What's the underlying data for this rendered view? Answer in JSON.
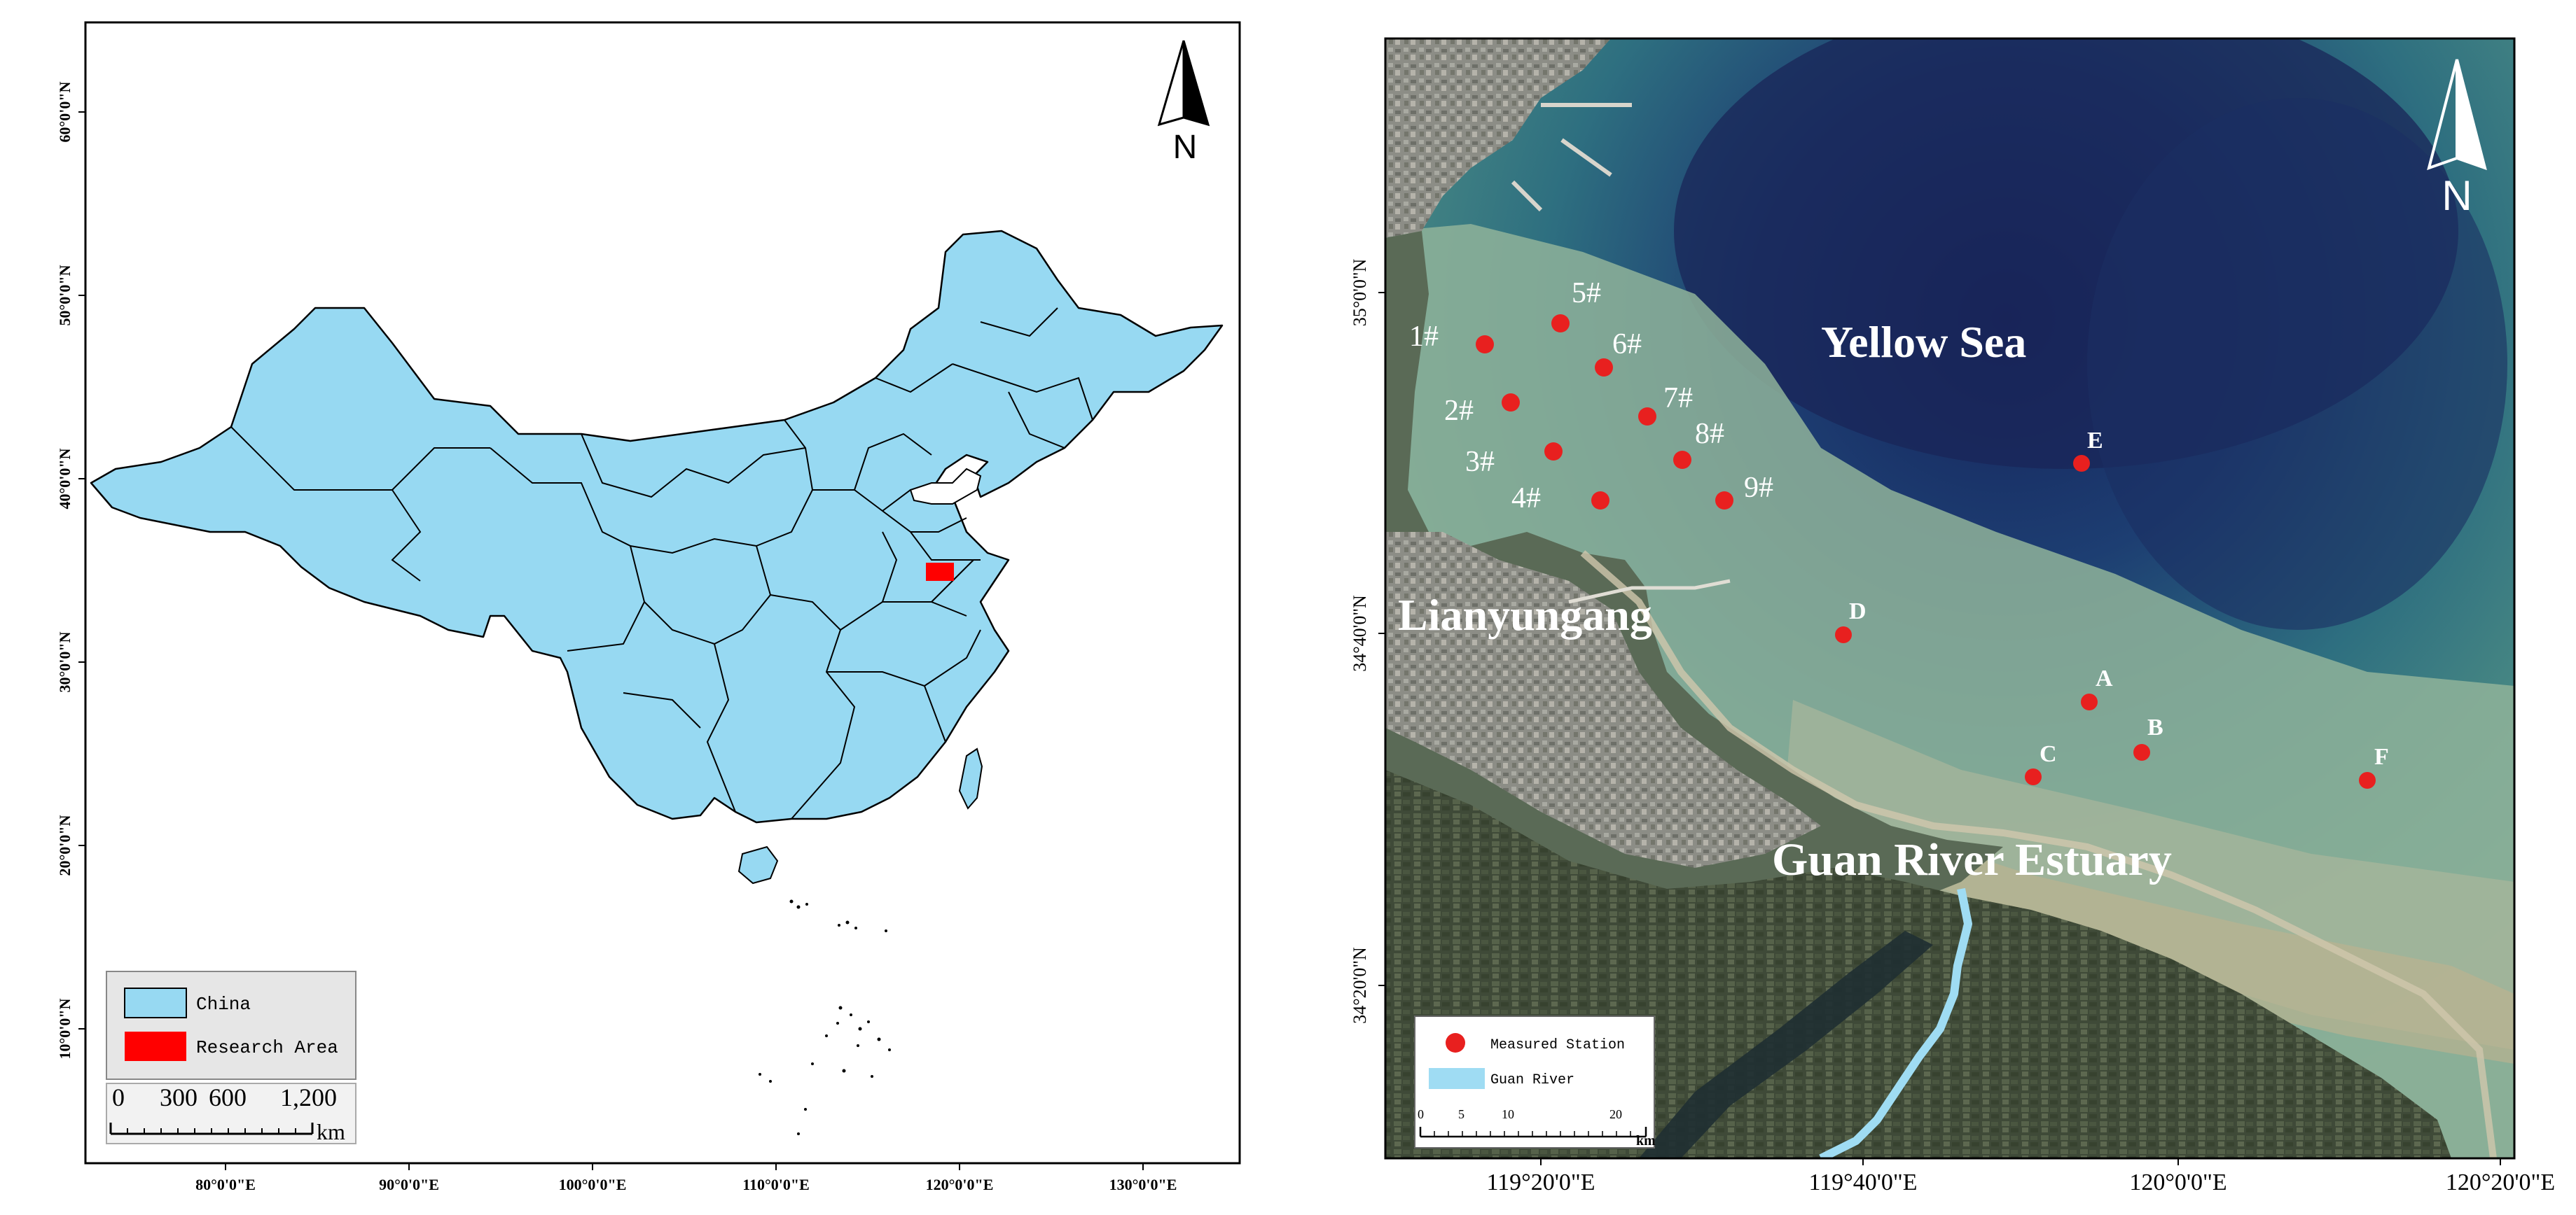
{
  "left_map": {
    "x_ticks": [
      "80°0'0\"E",
      "90°0'0\"E",
      "100°0'0\"E",
      "110°0'0\"E",
      "120°0'0\"E",
      "130°0'0\"E"
    ],
    "y_ticks": [
      "60°0'0\"N",
      "50°0'0\"N",
      "40°0'0\"N",
      "30°0'0\"N",
      "20°0'0\"N",
      "10°0'0\"N"
    ],
    "north_label": "N",
    "legend": {
      "china": "China",
      "research_area": "Research Area"
    },
    "scale": {
      "ticks": [
        "0",
        "300",
        "600",
        "1,200"
      ],
      "unit": "km"
    },
    "colors": {
      "china_fill": "#97d9f2",
      "research_area": "#ff0000",
      "legend_bg": "#e6e6e6"
    }
  },
  "right_map": {
    "x_ticks": [
      "119°20'0\"E",
      "119°40'0\"E",
      "120°0'0\"E",
      "120°20'0\"E"
    ],
    "y_ticks": [
      "35°0'0\"N",
      "34°40'0\"N",
      "34°20'0\"N"
    ],
    "place_labels": {
      "sea": "Yellow Sea",
      "city": "Lianyungang",
      "estuary": "Guan River Estuary"
    },
    "north_label": "N",
    "stations_numbered": [
      "1#",
      "2#",
      "3#",
      "4#",
      "5#",
      "6#",
      "7#",
      "8#",
      "9#"
    ],
    "stations_lettered": [
      "A",
      "B",
      "C",
      "D",
      "E",
      "F"
    ],
    "legend": {
      "station": "Measured Station",
      "river": "Guan River"
    },
    "scale": {
      "ticks": [
        "0",
        "5",
        "10",
        "20"
      ],
      "unit": "km"
    },
    "colors": {
      "station": "#e8201f",
      "river": "#9fdcf3"
    }
  }
}
